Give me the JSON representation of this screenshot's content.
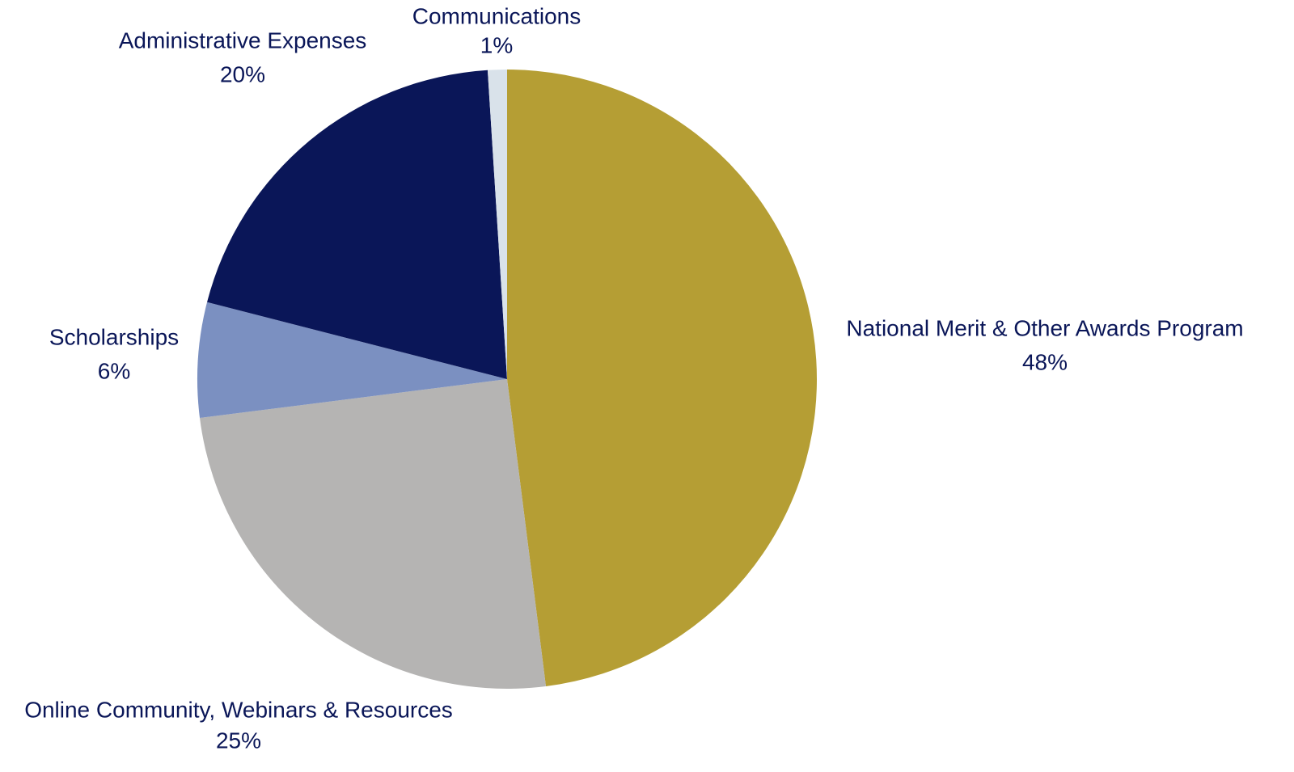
{
  "chart_data": {
    "type": "pie",
    "categories": [
      "National Merit & Other Awards Program",
      "Online Community, Webinars & Resources",
      "Scholarships",
      "Administrative Expenses",
      "Communications"
    ],
    "values": [
      48,
      25,
      6,
      20,
      1
    ],
    "value_labels": [
      "48%",
      "25%",
      "6%",
      "20%",
      "1%"
    ],
    "colors": [
      "#b59e34",
      "#b5b4b3",
      "#7b90c1",
      "#0a1658",
      "#d9e2ea"
    ]
  }
}
